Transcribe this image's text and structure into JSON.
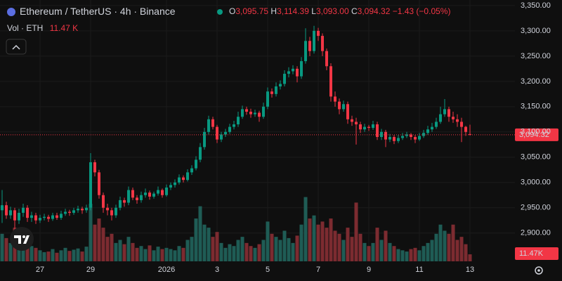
{
  "chart_data": {
    "type": "candlestick",
    "header": {
      "title": "Ethereum / TetherUS · 4h · Binance",
      "ohlc": [
        {
          "key": "O",
          "text": "3,095.75"
        },
        {
          "key": "H",
          "text": "3,114.39"
        },
        {
          "key": "L",
          "text": "3,093.00"
        },
        {
          "key": "C",
          "text": "3,094.32"
        }
      ],
      "change": "−1.43 (−0.05%)",
      "volume_title": "Vol · ETH",
      "volume_text": "11.47 K"
    },
    "last_price_label": "3,094.32",
    "last_volume_label": "11.47K",
    "up_color": "#089981",
    "down_color": "#f23645",
    "volume_up_color": "#1f5c55",
    "volume_down_color": "#7c2b30",
    "grid": true,
    "ylim": [
      2844,
      3361
    ],
    "vol_lim": [
      0,
      427
    ],
    "yticks": [
      {
        "value": 2900,
        "label": "2,900.00"
      },
      {
        "value": 2950,
        "label": "2,950.00"
      },
      {
        "value": 3000,
        "label": "3,000.00"
      },
      {
        "value": 3050,
        "label": "3,050.00"
      },
      {
        "value": 3100,
        "label": "3,100.00"
      },
      {
        "value": 3150,
        "label": "3,150.00"
      },
      {
        "value": 3200,
        "label": "3,200.00"
      },
      {
        "value": 3250,
        "label": "3,250.00"
      },
      {
        "value": 3300,
        "label": "3,300.00"
      },
      {
        "value": 3350,
        "label": "3,350.00"
      }
    ],
    "xticks": [
      {
        "value": 9,
        "label": "27"
      },
      {
        "value": 21,
        "label": "29"
      },
      {
        "value": 39,
        "label": "2026"
      },
      {
        "value": 51,
        "label": "3"
      },
      {
        "value": 63,
        "label": "5"
      },
      {
        "value": 75,
        "label": "7"
      },
      {
        "value": 87,
        "label": "9"
      },
      {
        "value": 99,
        "label": "11"
      },
      {
        "value": 111,
        "label": "13"
      }
    ],
    "candles": [
      [
        2945,
        2985,
        2920,
        2955,
        45
      ],
      [
        2955,
        2962,
        2928,
        2935,
        38
      ],
      [
        2935,
        2952,
        2928,
        2945,
        30
      ],
      [
        2945,
        2950,
        2905,
        2925,
        55
      ],
      [
        2925,
        2948,
        2918,
        2940,
        35
      ],
      [
        2940,
        2958,
        2932,
        2950,
        28
      ],
      [
        2950,
        2955,
        2922,
        2930,
        32
      ],
      [
        2930,
        2942,
        2922,
        2935,
        25
      ],
      [
        2935,
        2940,
        2918,
        2925,
        22
      ],
      [
        2925,
        2936,
        2920,
        2930,
        18
      ],
      [
        2930,
        2938,
        2925,
        2932,
        15
      ],
      [
        2932,
        2936,
        2922,
        2928,
        16
      ],
      [
        2928,
        2940,
        2924,
        2935,
        20
      ],
      [
        2935,
        2940,
        2926,
        2930,
        14
      ],
      [
        2930,
        2944,
        2926,
        2938,
        18
      ],
      [
        2938,
        2948,
        2934,
        2942,
        22
      ],
      [
        2942,
        2946,
        2934,
        2940,
        17
      ],
      [
        2940,
        2950,
        2936,
        2945,
        19
      ],
      [
        2945,
        2954,
        2940,
        2948,
        21
      ],
      [
        2948,
        2952,
        2938,
        2945,
        16
      ],
      [
        2945,
        2956,
        2940,
        2950,
        24
      ],
      [
        2950,
        3058,
        2945,
        3040,
        94
      ],
      [
        3040,
        3045,
        3012,
        3020,
        60
      ],
      [
        3020,
        3025,
        2968,
        2975,
        70
      ],
      [
        2975,
        2980,
        2940,
        2950,
        55
      ],
      [
        2950,
        2958,
        2935,
        2945,
        40
      ],
      [
        2945,
        2950,
        2925,
        2935,
        45
      ],
      [
        2935,
        2956,
        2930,
        2950,
        30
      ],
      [
        2950,
        2972,
        2945,
        2965,
        35
      ],
      [
        2965,
        2970,
        2952,
        2960,
        28
      ],
      [
        2960,
        2992,
        2955,
        2985,
        40
      ],
      [
        2985,
        2990,
        2965,
        2970,
        30
      ],
      [
        2970,
        2975,
        2958,
        2965,
        22
      ],
      [
        2965,
        2982,
        2960,
        2975,
        25
      ],
      [
        2975,
        2988,
        2970,
        2980,
        20
      ],
      [
        2980,
        2984,
        2966,
        2972,
        26
      ],
      [
        2972,
        2982,
        2968,
        2978,
        18
      ],
      [
        2978,
        2992,
        2974,
        2985,
        24
      ],
      [
        2985,
        2988,
        2970,
        2975,
        20
      ],
      [
        2975,
        2996,
        2972,
        2990,
        22
      ],
      [
        2990,
        3000,
        2985,
        2995,
        20
      ],
      [
        2995,
        3006,
        2990,
        3000,
        18
      ],
      [
        3000,
        3016,
        2996,
        3010,
        25
      ],
      [
        3010,
        3014,
        3000,
        3005,
        22
      ],
      [
        3005,
        3026,
        3002,
        3020,
        35
      ],
      [
        3020,
        3034,
        3015,
        3028,
        40
      ],
      [
        3028,
        3052,
        3024,
        3045,
        70
      ],
      [
        3045,
        3078,
        3040,
        3070,
        90
      ],
      [
        3070,
        3108,
        3065,
        3100,
        60
      ],
      [
        3100,
        3132,
        3095,
        3125,
        55
      ],
      [
        3125,
        3130,
        3105,
        3110,
        40
      ],
      [
        3110,
        3114,
        3078,
        3085,
        48
      ],
      [
        3085,
        3100,
        3080,
        3095,
        30
      ],
      [
        3095,
        3106,
        3090,
        3100,
        22
      ],
      [
        3100,
        3116,
        3096,
        3110,
        28
      ],
      [
        3110,
        3122,
        3105,
        3115,
        25
      ],
      [
        3115,
        3140,
        3110,
        3130,
        35
      ],
      [
        3130,
        3152,
        3126,
        3145,
        40
      ],
      [
        3145,
        3150,
        3134,
        3140,
        30
      ],
      [
        3140,
        3146,
        3128,
        3135,
        25
      ],
      [
        3135,
        3144,
        3130,
        3138,
        22
      ],
      [
        3138,
        3142,
        3120,
        3130,
        28
      ],
      [
        3130,
        3158,
        3126,
        3150,
        35
      ],
      [
        3150,
        3188,
        3145,
        3180,
        65
      ],
      [
        3180,
        3186,
        3168,
        3175,
        45
      ],
      [
        3175,
        3198,
        3170,
        3190,
        40
      ],
      [
        3190,
        3202,
        3184,
        3195,
        35
      ],
      [
        3195,
        3222,
        3190,
        3215,
        50
      ],
      [
        3215,
        3228,
        3208,
        3220,
        38
      ],
      [
        3220,
        3232,
        3214,
        3225,
        30
      ],
      [
        3225,
        3230,
        3198,
        3210,
        42
      ],
      [
        3210,
        3248,
        3205,
        3240,
        60
      ],
      [
        3240,
        3305,
        3235,
        3280,
        105
      ],
      [
        3280,
        3288,
        3250,
        3260,
        70
      ],
      [
        3260,
        3310,
        3255,
        3300,
        75
      ],
      [
        3300,
        3306,
        3280,
        3290,
        60
      ],
      [
        3290,
        3295,
        3250,
        3260,
        65
      ],
      [
        3260,
        3265,
        3222,
        3230,
        55
      ],
      [
        3230,
        3236,
        3160,
        3170,
        70
      ],
      [
        3170,
        3180,
        3150,
        3160,
        50
      ],
      [
        3160,
        3166,
        3135,
        3145,
        45
      ],
      [
        3145,
        3162,
        3140,
        3155,
        35
      ],
      [
        3155,
        3160,
        3116,
        3125,
        55
      ],
      [
        3125,
        3132,
        3112,
        3120,
        40
      ],
      [
        3120,
        3128,
        3075,
        3115,
        96
      ],
      [
        3115,
        3120,
        3098,
        3105,
        45
      ],
      [
        3105,
        3116,
        3100,
        3110,
        30
      ],
      [
        3110,
        3114,
        3102,
        3108,
        25
      ],
      [
        3108,
        3122,
        3104,
        3115,
        30
      ],
      [
        3115,
        3120,
        3084,
        3090,
        55
      ],
      [
        3090,
        3106,
        3084,
        3100,
        35
      ],
      [
        3100,
        3104,
        3070,
        3085,
        50
      ],
      [
        3085,
        3096,
        3080,
        3090,
        30
      ],
      [
        3090,
        3094,
        3076,
        3082,
        25
      ],
      [
        3082,
        3094,
        3078,
        3088,
        20
      ],
      [
        3088,
        3098,
        3084,
        3092,
        18
      ],
      [
        3092,
        3100,
        3088,
        3095,
        16
      ],
      [
        3095,
        3098,
        3084,
        3090,
        20
      ],
      [
        3090,
        3094,
        3078,
        3085,
        22
      ],
      [
        3085,
        3098,
        3082,
        3092,
        18
      ],
      [
        3092,
        3104,
        3088,
        3098,
        25
      ],
      [
        3098,
        3112,
        3094,
        3105,
        30
      ],
      [
        3105,
        3118,
        3100,
        3110,
        35
      ],
      [
        3110,
        3128,
        3106,
        3120,
        45
      ],
      [
        3120,
        3150,
        3116,
        3135,
        60
      ],
      [
        3135,
        3165,
        3130,
        3145,
        50
      ],
      [
        3145,
        3150,
        3120,
        3130,
        45
      ],
      [
        3130,
        3140,
        3118,
        3125,
        60
      ],
      [
        3125,
        3135,
        3110,
        3120,
        35
      ],
      [
        3120,
        3128,
        3080,
        3110,
        40
      ],
      [
        3110,
        3112,
        3092,
        3100,
        28
      ],
      [
        3095.75,
        3114.39,
        3093,
        3094.32,
        11.47
      ]
    ]
  }
}
